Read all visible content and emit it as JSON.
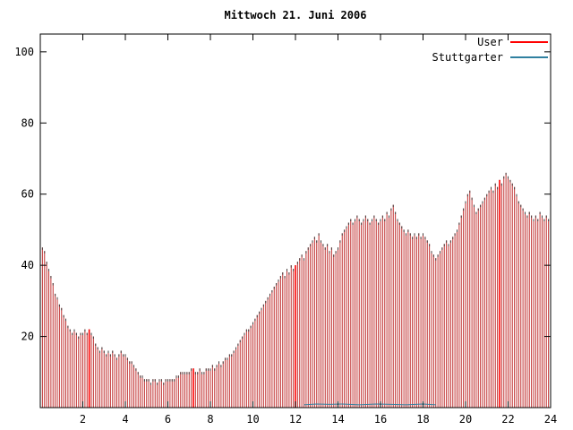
{
  "chart_data": {
    "type": "bar",
    "title": "Mittwoch 21. Juni 2006",
    "xlabel": "",
    "ylabel": "",
    "xlim": [
      0,
      24
    ],
    "ylim": [
      0,
      105
    ],
    "xticks": [
      2,
      4,
      6,
      8,
      10,
      12,
      14,
      16,
      18,
      20,
      22,
      24
    ],
    "yticks": [
      20,
      40,
      60,
      80,
      100
    ],
    "x_start": 0,
    "x_step": 0.1,
    "grid": false,
    "legend_position": "top-right-inside",
    "cap_color": "#404040",
    "axis_color": "#000000",
    "series": [
      {
        "name": "User",
        "color": "#c03030",
        "legend_color": "#ff0000",
        "highlight_color": "#ff0000",
        "highlight_indices": [
          23,
          72,
          120,
          216
        ],
        "values": [
          46,
          45,
          44,
          41,
          39,
          37,
          35,
          32,
          31,
          29,
          28,
          26,
          25,
          23,
          22,
          21,
          22,
          21,
          20,
          21,
          21,
          22,
          21,
          22,
          21,
          20,
          18,
          17,
          16,
          17,
          16,
          15,
          16,
          15,
          16,
          15,
          14,
          15,
          16,
          15,
          15,
          14,
          13,
          13,
          12,
          11,
          10,
          9,
          9,
          8,
          8,
          8,
          7,
          8,
          8,
          7,
          8,
          8,
          7,
          8,
          8,
          8,
          8,
          8,
          9,
          9,
          10,
          10,
          10,
          10,
          10,
          11,
          11,
          10,
          10,
          11,
          10,
          10,
          11,
          11,
          11,
          12,
          11,
          12,
          13,
          12,
          13,
          14,
          14,
          15,
          15,
          16,
          17,
          18,
          19,
          20,
          21,
          22,
          22,
          23,
          24,
          25,
          26,
          27,
          28,
          29,
          30,
          31,
          32,
          33,
          34,
          35,
          36,
          37,
          38,
          37,
          39,
          38,
          40,
          39,
          40,
          41,
          42,
          43,
          42,
          44,
          45,
          46,
          47,
          48,
          47,
          49,
          47,
          46,
          45,
          46,
          44,
          45,
          43,
          44,
          45,
          47,
          49,
          50,
          51,
          52,
          53,
          52,
          53,
          54,
          53,
          52,
          53,
          54,
          53,
          52,
          53,
          54,
          53,
          52,
          53,
          54,
          53,
          55,
          54,
          56,
          57,
          55,
          53,
          52,
          51,
          50,
          49,
          50,
          49,
          48,
          49,
          48,
          49,
          48,
          49,
          48,
          47,
          46,
          44,
          43,
          42,
          43,
          44,
          45,
          46,
          47,
          46,
          47,
          48,
          49,
          50,
          52,
          54,
          56,
          58,
          60,
          61,
          59,
          57,
          55,
          56,
          57,
          58,
          59,
          60,
          61,
          62,
          61,
          63,
          62,
          64,
          63,
          65,
          66,
          65,
          64,
          63,
          62,
          60,
          58,
          57,
          56,
          55,
          54,
          55,
          54,
          53,
          54,
          53,
          55,
          54,
          53,
          54,
          53,
          54
        ]
      },
      {
        "name": "Stuttgarter",
        "color": "#3080a0",
        "legend_color": "#3080a0",
        "x": [
          12.4,
          13.0,
          13.6,
          14.2,
          15.0,
          15.8,
          16.5,
          17.2,
          18.0,
          18.6
        ],
        "values": [
          0.8,
          1.0,
          0.9,
          1.0,
          0.8,
          1.0,
          0.9,
          0.8,
          1.0,
          0.8
        ]
      }
    ]
  }
}
